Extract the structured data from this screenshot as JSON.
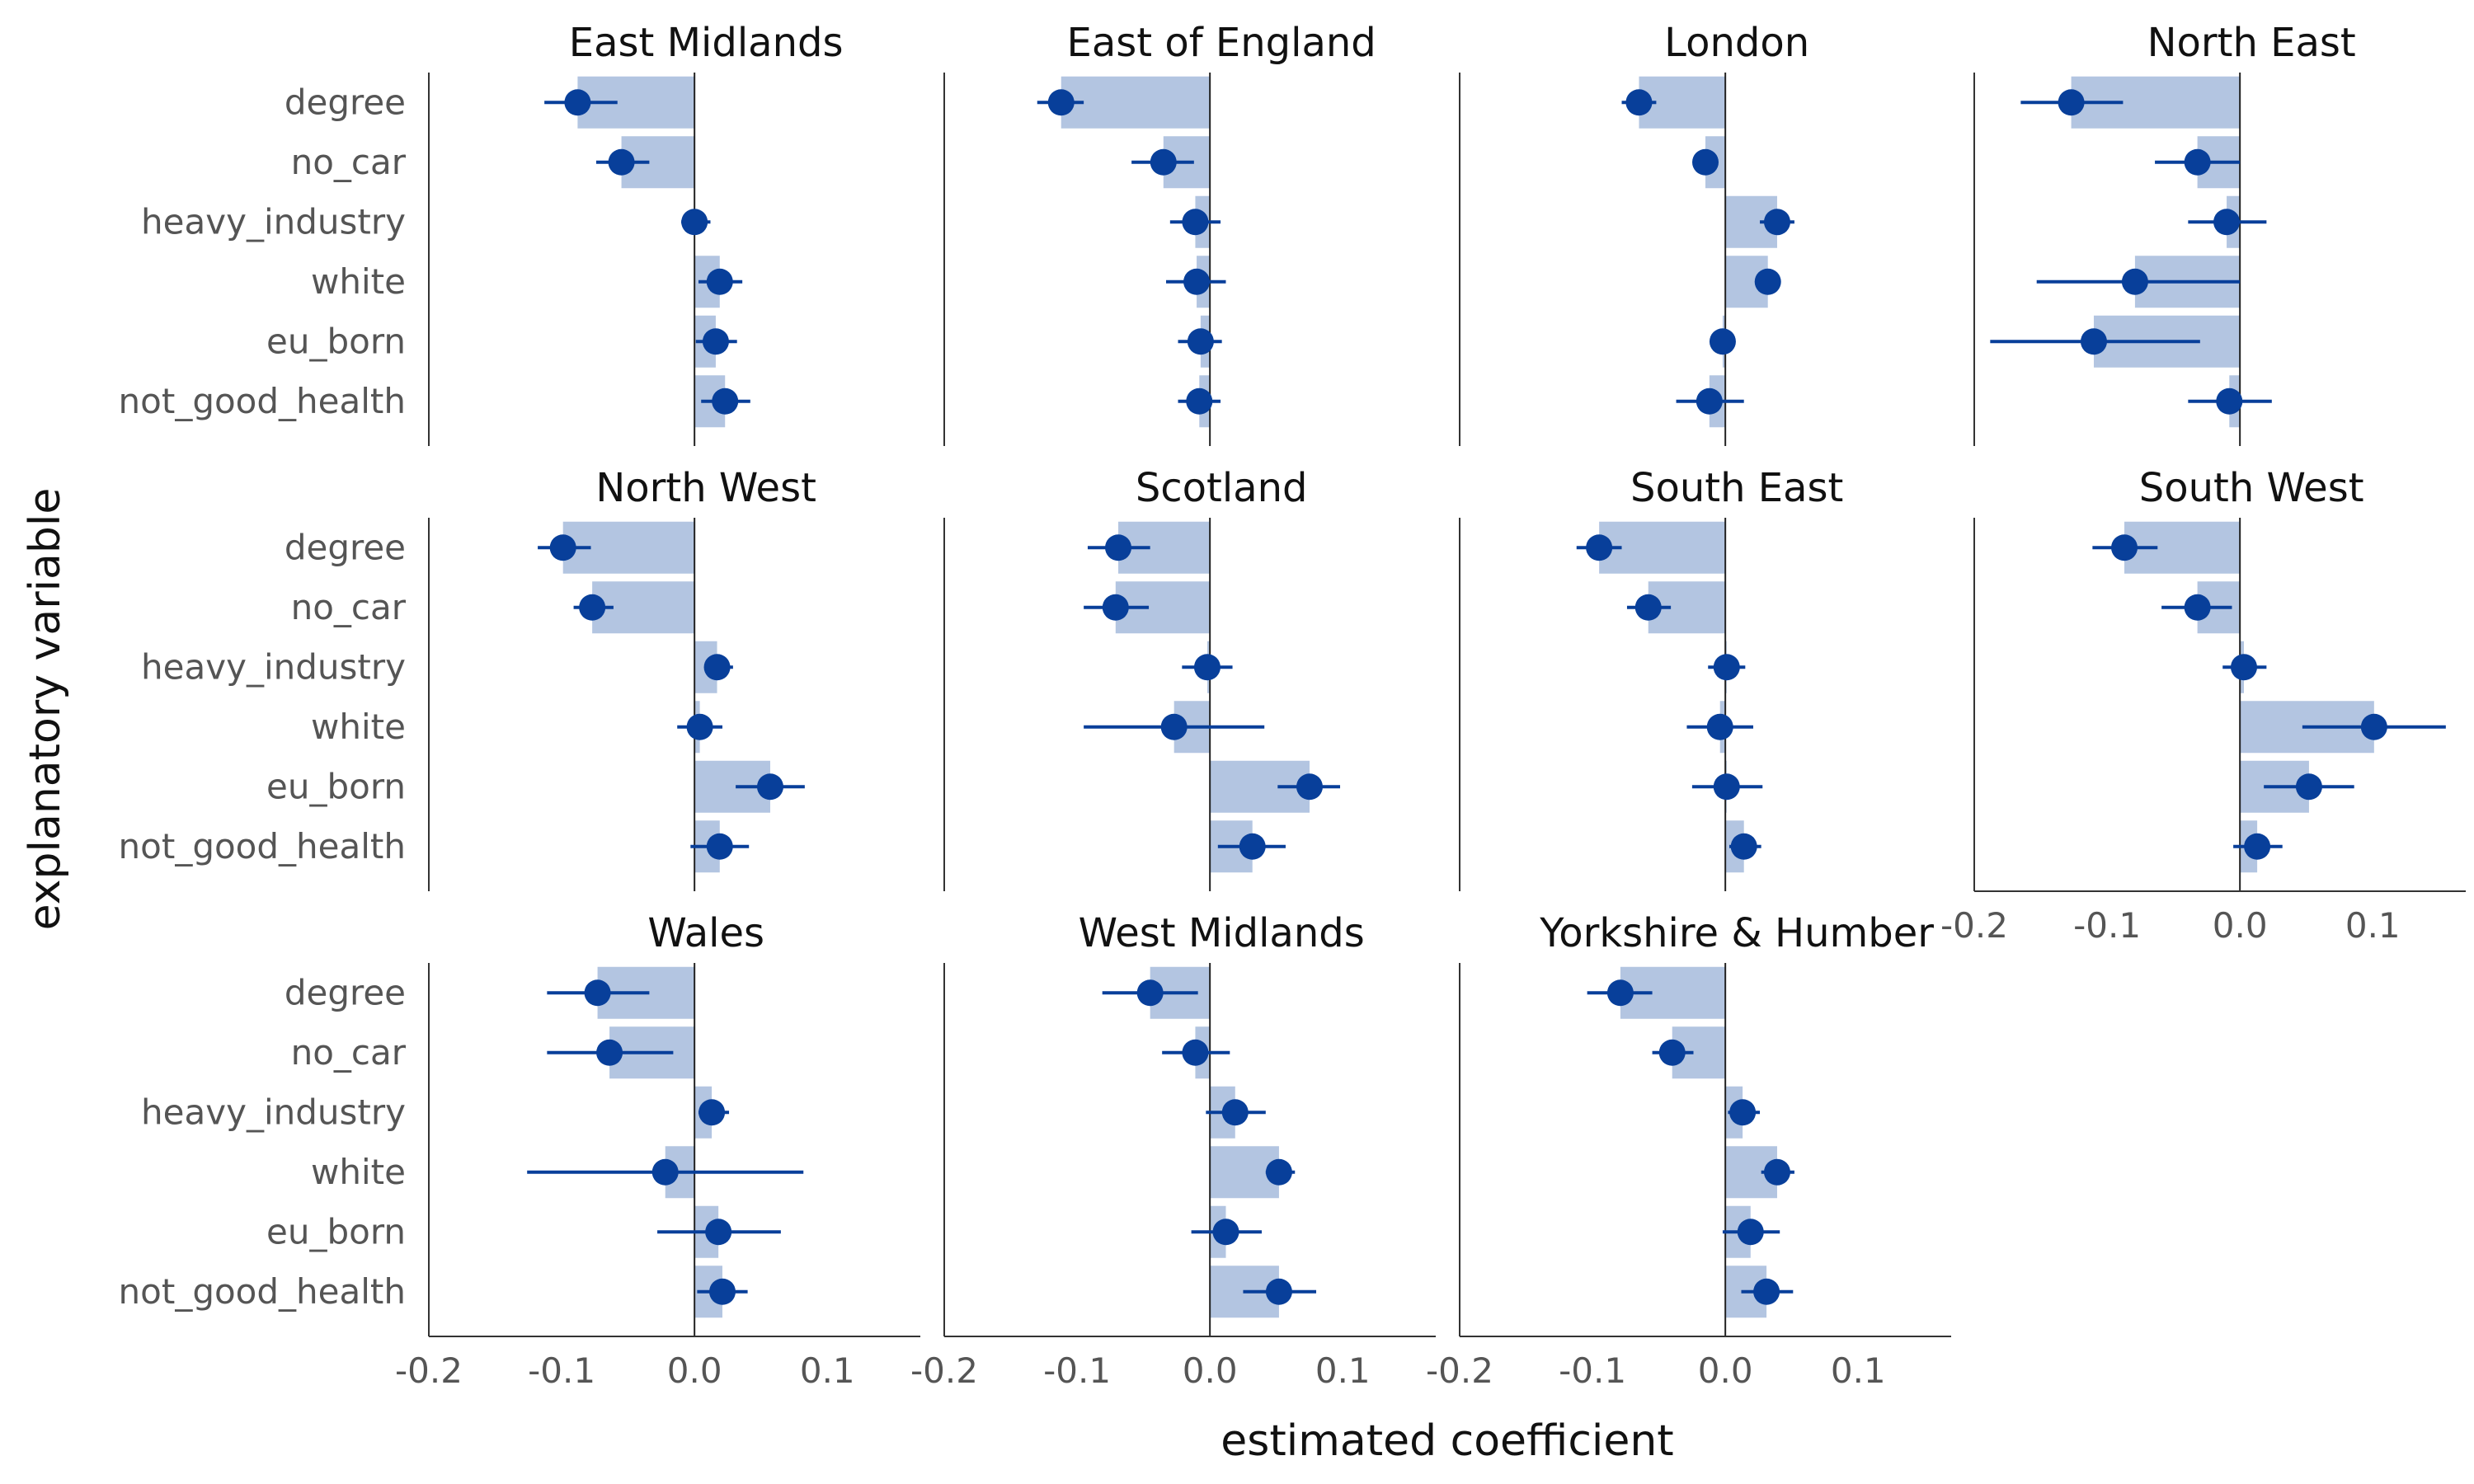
{
  "chart_data": {
    "type": "bar",
    "layout": "faceted horizontal bars with point estimates and confidence intervals",
    "xlabel": "estimated coefficient",
    "ylabel": "explanatory variable",
    "xlim": [
      -0.2,
      0.17
    ],
    "xticks": [
      -0.2,
      -0.1,
      0.0,
      0.1
    ],
    "xtick_labels": [
      "-0.2",
      "-0.1",
      "0.0",
      "0.1"
    ],
    "categories": [
      "degree",
      "no_car",
      "heavy_industry",
      "white",
      "eu_born",
      "not_good_health"
    ],
    "grid": false,
    "bar_color": "#b3c5e1",
    "point_color": "#083f9a",
    "zero_line_color": "#222222",
    "panels": [
      {
        "title": "East Midlands",
        "values": [
          -0.088,
          -0.055,
          0.0,
          0.019,
          0.016,
          0.023
        ],
        "ci": [
          [
            -0.113,
            -0.058
          ],
          [
            -0.074,
            -0.034
          ],
          [
            -0.01,
            0.012
          ],
          [
            0.003,
            0.036
          ],
          [
            0.001,
            0.032
          ],
          [
            0.005,
            0.042
          ]
        ]
      },
      {
        "title": "East of England",
        "values": [
          -0.112,
          -0.035,
          -0.011,
          -0.01,
          -0.007,
          -0.008
        ],
        "ci": [
          [
            -0.13,
            -0.095
          ],
          [
            -0.059,
            -0.012
          ],
          [
            -0.03,
            0.008
          ],
          [
            -0.033,
            0.012
          ],
          [
            -0.024,
            0.009
          ],
          [
            -0.024,
            0.008
          ]
        ]
      },
      {
        "title": "London",
        "values": [
          -0.065,
          -0.015,
          0.039,
          0.032,
          -0.002,
          -0.012
        ],
        "ci": [
          [
            -0.078,
            -0.052
          ],
          [
            -0.015,
            -0.015
          ],
          [
            0.026,
            0.052
          ],
          [
            0.026,
            0.038
          ],
          [
            -0.002,
            -0.002
          ],
          [
            -0.037,
            0.014
          ]
        ]
      },
      {
        "title": "North East",
        "values": [
          -0.127,
          -0.032,
          -0.01,
          -0.079,
          -0.11,
          -0.008
        ],
        "ci": [
          [
            -0.165,
            -0.088
          ],
          [
            -0.064,
            0.0
          ],
          [
            -0.039,
            0.02
          ],
          [
            -0.153,
            0.0
          ],
          [
            -0.188,
            -0.03
          ],
          [
            -0.039,
            0.024
          ]
        ]
      },
      {
        "title": "North West",
        "values": [
          -0.099,
          -0.077,
          0.017,
          0.004,
          0.057,
          0.019
        ],
        "ci": [
          [
            -0.118,
            -0.078
          ],
          [
            -0.091,
            -0.061
          ],
          [
            0.009,
            0.029
          ],
          [
            -0.013,
            0.021
          ],
          [
            0.031,
            0.083
          ],
          [
            -0.003,
            0.041
          ]
        ]
      },
      {
        "title": "Scotland",
        "values": [
          -0.069,
          -0.071,
          -0.002,
          -0.027,
          0.075,
          0.032
        ],
        "ci": [
          [
            -0.092,
            -0.045
          ],
          [
            -0.095,
            -0.046
          ],
          [
            -0.021,
            0.017
          ],
          [
            -0.095,
            0.041
          ],
          [
            0.051,
            0.098
          ],
          [
            0.006,
            0.057
          ]
        ]
      },
      {
        "title": "South East",
        "values": [
          -0.095,
          -0.058,
          0.001,
          -0.004,
          0.001,
          0.014
        ],
        "ci": [
          [
            -0.112,
            -0.078
          ],
          [
            -0.074,
            -0.041
          ],
          [
            -0.013,
            0.015
          ],
          [
            -0.029,
            0.021
          ],
          [
            -0.025,
            0.028
          ],
          [
            0.003,
            0.027
          ]
        ]
      },
      {
        "title": "South West",
        "values": [
          -0.087,
          -0.032,
          0.003,
          0.101,
          0.052,
          0.013
        ],
        "ci": [
          [
            -0.111,
            -0.062
          ],
          [
            -0.059,
            -0.006
          ],
          [
            -0.013,
            0.02
          ],
          [
            0.047,
            0.155
          ],
          [
            0.018,
            0.086
          ],
          [
            -0.005,
            0.032
          ]
        ]
      },
      {
        "title": "Wales",
        "values": [
          -0.073,
          -0.064,
          0.013,
          -0.022,
          0.018,
          0.021
        ],
        "ci": [
          [
            -0.111,
            -0.034
          ],
          [
            -0.111,
            -0.016
          ],
          [
            0.003,
            0.026
          ],
          [
            -0.126,
            0.082
          ],
          [
            -0.028,
            0.065
          ],
          [
            0.002,
            0.04
          ]
        ]
      },
      {
        "title": "West Midlands",
        "values": [
          -0.045,
          -0.011,
          0.019,
          0.052,
          0.012,
          0.052
        ],
        "ci": [
          [
            -0.081,
            -0.009
          ],
          [
            -0.036,
            0.015
          ],
          [
            -0.003,
            0.042
          ],
          [
            0.042,
            0.064
          ],
          [
            -0.014,
            0.039
          ],
          [
            0.025,
            0.08
          ]
        ]
      },
      {
        "title": "Yorkshire & Humber",
        "values": [
          -0.079,
          -0.04,
          0.013,
          0.039,
          0.019,
          0.031
        ],
        "ci": [
          [
            -0.104,
            -0.055
          ],
          [
            -0.055,
            -0.024
          ],
          [
            0.002,
            0.026
          ],
          [
            0.027,
            0.052
          ],
          [
            -0.002,
            0.041
          ],
          [
            0.012,
            0.051
          ]
        ]
      }
    ]
  }
}
